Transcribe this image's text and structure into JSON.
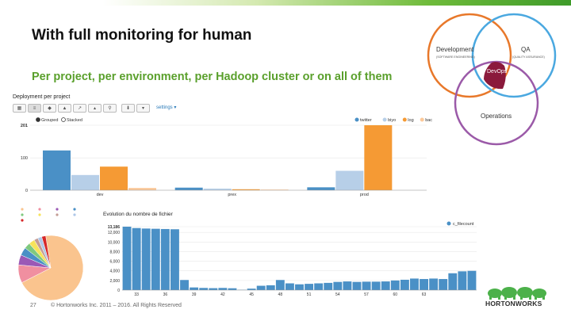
{
  "slide": {
    "title": "With full monitoring for human",
    "subtitle": "Per project, per environment, per Hadoop cluster or on all of them",
    "page_number": "27",
    "copyright": "© Hortonworks Inc. 2011 – 2016. All Rights Reserved",
    "logo_text": "HORTONWORKS"
  },
  "venn": {
    "development_label": "Development",
    "development_sub": "(SOFTWARE ENGINEERING)",
    "qa_label": "QA",
    "qa_sub": "(QUALITY ASSURANCE)",
    "operations_label": "Operations",
    "devops_label": "DevOps",
    "colors": {
      "development": "#e8782a",
      "qa": "#4aa8e0",
      "operations": "#9b5aa8",
      "devops": "#8b1a3c"
    }
  },
  "panel": {
    "title": "Deployment per project",
    "settings_label": "settings ▾",
    "toolbar": [
      "▦",
      "≡",
      "◆",
      "▲",
      "↗",
      "▴",
      "⚲",
      "⬇",
      "▾"
    ]
  },
  "chart_data": [
    {
      "type": "bar",
      "title": "",
      "controls": [
        "Grouped",
        "Stacked"
      ],
      "selected_control": "Grouped",
      "categories": [
        "dev",
        "prex",
        "prod"
      ],
      "series": [
        {
          "name": "twitter",
          "color": "#4a90c6",
          "values": [
            123,
            8,
            9
          ]
        },
        {
          "name": "biyo",
          "color": "#b7cfe8",
          "values": [
            47,
            5,
            60
          ]
        },
        {
          "name": "log",
          "color": "#f59a34",
          "values": [
            73,
            3,
            201
          ]
        },
        {
          "name": "backup",
          "color": "#fcc99a",
          "values": [
            7,
            2,
            0
          ]
        }
      ],
      "y_ticks": [
        "201",
        "100",
        "0"
      ],
      "ylim": [
        0,
        201
      ],
      "grid": true,
      "legend": "top-right"
    },
    {
      "type": "bar",
      "title": "Evolution du nombre de fichier",
      "series": [
        {
          "name": "c_filecount",
          "color": "#4a90c6",
          "values": [
            13186,
            12900,
            12800,
            12750,
            12700,
            12650,
            2100,
            550,
            450,
            400,
            450,
            380,
            60,
            300,
            900,
            1000,
            2100,
            1400,
            1200,
            1300,
            1400,
            1500,
            1700,
            1800,
            1700,
            1750,
            1750,
            1800,
            2000,
            2150,
            2400,
            2300,
            2400,
            2300,
            3500,
            3900,
            4000
          ]
        }
      ],
      "x_ticks": [
        "33",
        "36",
        "39",
        "42",
        "45",
        "48",
        "51",
        "54",
        "57",
        "60",
        "63"
      ],
      "y_ticks": [
        "13,186",
        "12,000",
        "10,000",
        "8,000",
        "6,000",
        "4,000",
        "2,000",
        "0"
      ],
      "ylim": [
        0,
        13186
      ],
      "grid": true,
      "legend": "top-right"
    },
    {
      "type": "pie",
      "slices": [
        {
          "color": "#fac48e",
          "value": 70
        },
        {
          "color": "#f08fa0",
          "value": 9
        },
        {
          "color": "#9b59b6",
          "value": 5
        },
        {
          "color": "#4a90c6",
          "value": 4
        },
        {
          "color": "#7fc97f",
          "value": 3
        },
        {
          "color": "#f7e35a",
          "value": 3
        },
        {
          "color": "#c49c94",
          "value": 2
        },
        {
          "color": "#aec7e8",
          "value": 2
        },
        {
          "color": "#d62728",
          "value": 2
        }
      ],
      "legend": "top"
    }
  ]
}
